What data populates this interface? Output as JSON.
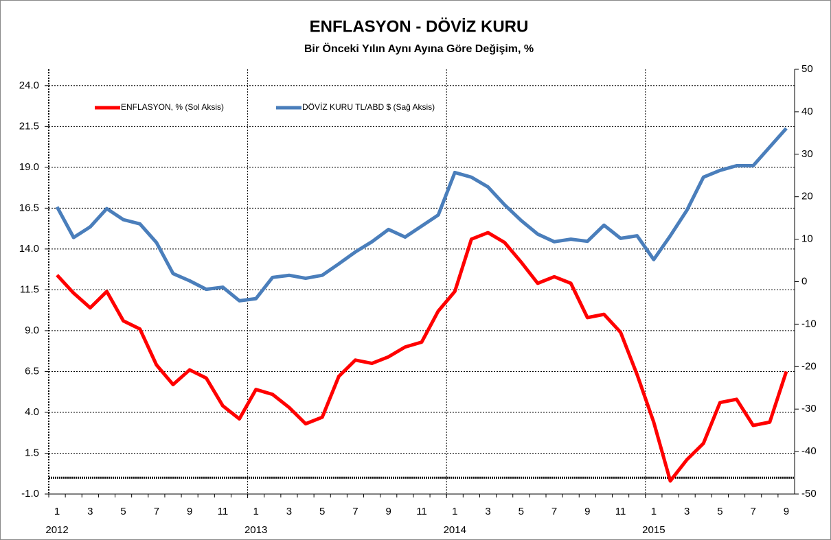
{
  "chart_data": {
    "type": "line",
    "title": "ENFLASYON - DÖVİZ KURU",
    "subtitle": "Bir Önceki Yılın Aynı Ayına Göre Değişim, %",
    "categories": [
      "1",
      null,
      "3",
      null,
      "5",
      null,
      "7",
      null,
      "9",
      null,
      "11",
      null,
      "1",
      null,
      "3",
      null,
      "5",
      null,
      "7",
      null,
      "9",
      null,
      "11",
      null,
      "1",
      null,
      "3",
      null,
      "5",
      null,
      "7",
      null,
      "9",
      null,
      "11",
      null,
      "1",
      null,
      "3",
      null,
      "5",
      null,
      "7",
      null,
      "9"
    ],
    "year_labels": [
      "2012",
      "2013",
      "2014",
      "2015"
    ],
    "series": [
      {
        "name": "ENFLASYON, % (Sol Aksis)",
        "color": "#ff0000",
        "axis": "y",
        "values": [
          12.4,
          11.3,
          10.4,
          11.4,
          9.6,
          9.1,
          6.9,
          5.7,
          6.6,
          6.1,
          4.4,
          3.6,
          5.4,
          5.1,
          4.3,
          3.3,
          3.7,
          6.2,
          7.2,
          7.0,
          7.4,
          8.0,
          8.3,
          10.2,
          11.4,
          14.6,
          15.0,
          14.4,
          13.2,
          11.9,
          12.3,
          11.9,
          9.8,
          10.0,
          8.9,
          6.3,
          3.4,
          -0.2,
          1.1,
          2.1,
          4.6,
          4.8,
          3.2,
          3.4,
          6.5
        ]
      },
      {
        "name": "DÖVİZ KURU TL/ABD $ (Sağ Aksis)",
        "color": "#4a7ebb",
        "axis": "y2",
        "values": [
          17.6,
          10.4,
          12.9,
          17.2,
          14.6,
          13.6,
          9.2,
          1.9,
          0.2,
          -1.8,
          -1.3,
          -4.5,
          -4.0,
          1.0,
          1.5,
          0.8,
          1.5,
          4.2,
          7.0,
          9.4,
          12.3,
          10.5,
          13.1,
          15.7,
          25.7,
          24.6,
          22.3,
          18.1,
          14.4,
          11.2,
          9.4,
          10.0,
          9.5,
          13.3,
          10.2,
          10.8,
          5.2,
          10.8,
          16.8,
          24.6,
          26.2,
          27.3,
          27.3,
          31.7,
          36.1
        ]
      }
    ],
    "ylim": [
      -1,
      25
    ],
    "yticks": [
      {
        "value": -1,
        "label": "-1.0"
      },
      1.5,
      {
        "value": 4,
        "label": "4.0"
      },
      6.5,
      {
        "value": 9,
        "label": "9.0"
      },
      11.5,
      {
        "value": 14,
        "label": "14.0"
      },
      16.5,
      {
        "value": 19,
        "label": "19.0"
      },
      21.5,
      {
        "value": 24,
        "label": "24.0"
      }
    ],
    "y2lim": [
      -50,
      50
    ],
    "y2ticks": [
      -50,
      -40,
      -30,
      -20,
      -10,
      0,
      10,
      20,
      30,
      40,
      50
    ],
    "grid": true
  }
}
